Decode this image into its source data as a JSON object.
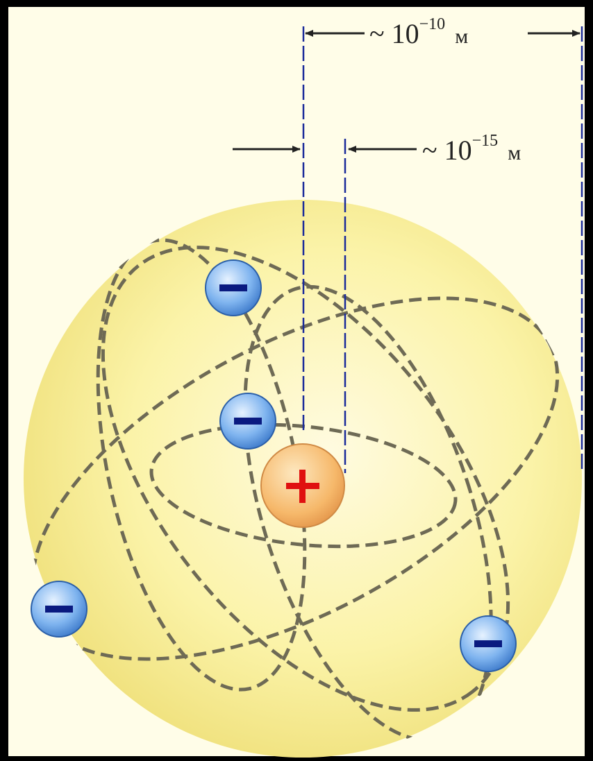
{
  "scale_labels": [
    {
      "approx": "~ 10",
      "exponent": "−10",
      "unit": "м"
    },
    {
      "approx": "~ 10",
      "exponent": "−15",
      "unit": "м"
    }
  ]
}
